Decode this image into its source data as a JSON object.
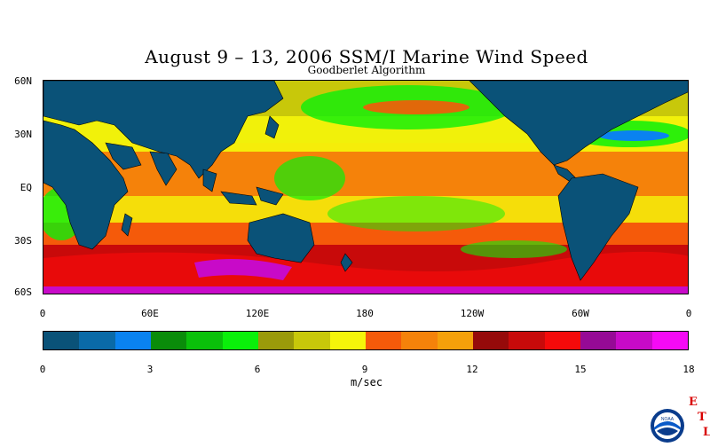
{
  "header": {
    "title": "August 9 – 13, 2006 SSM/I Marine Wind Speed",
    "subtitle": "Goodberlet Algorithm"
  },
  "map": {
    "lat_labels": [
      "60N",
      "30N",
      "EQ",
      "30S",
      "60S"
    ],
    "lon_labels": [
      "0",
      "60E",
      "120E",
      "180",
      "120W",
      "60W",
      "0"
    ],
    "land_color": "#0a5278"
  },
  "colorbar": {
    "colors": [
      "#0a5278",
      "#0a6aa8",
      "#0a82f0",
      "#0a8c0a",
      "#0ac00a",
      "#0af00a",
      "#9a9a0a",
      "#c8c80a",
      "#f5f50a",
      "#f55a0a",
      "#f5820a",
      "#f5a00a",
      "#960a0a",
      "#c80a0a",
      "#f50a0a",
      "#960a96",
      "#c80ac8",
      "#f50af5"
    ],
    "tick_labels": [
      "0",
      "3",
      "6",
      "9",
      "12",
      "15",
      "18"
    ],
    "units": "m/sec"
  },
  "branding": {
    "logo_text": "NOAA",
    "letters": [
      "E",
      "T",
      "L"
    ]
  }
}
